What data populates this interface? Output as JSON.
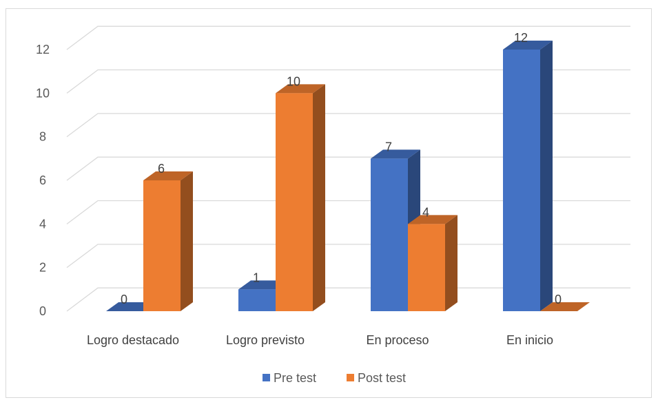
{
  "chart_data": {
    "type": "bar",
    "style": "3d-clustered-column",
    "categories": [
      "Logro destacado",
      "Logro previsto",
      "En proceso",
      "En inicio"
    ],
    "series": [
      {
        "name": "Pre test",
        "values": [
          0,
          1,
          7,
          12
        ],
        "color": "#4472c4"
      },
      {
        "name": "Post test",
        "values": [
          6,
          10,
          4,
          0
        ],
        "color": "#ed7d31"
      }
    ],
    "title": "",
    "xlabel": "",
    "ylabel": "",
    "ylim": [
      0,
      12
    ],
    "yticks": [
      0,
      2,
      4,
      6,
      8,
      10,
      12
    ],
    "grid": true,
    "data_labels": true,
    "legend_position": "bottom"
  }
}
